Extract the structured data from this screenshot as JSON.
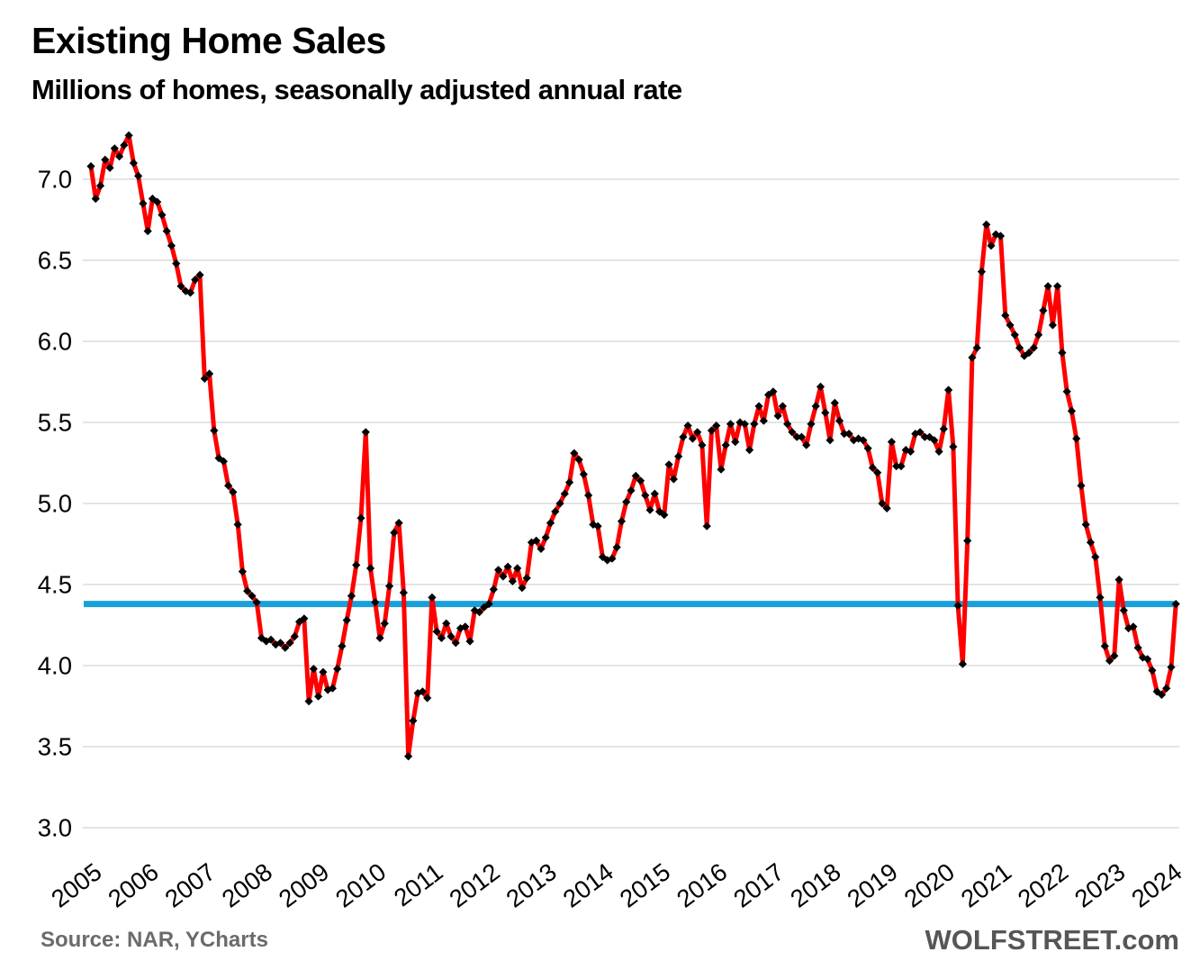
{
  "header": {
    "title": "Existing Home Sales",
    "subtitle": "Millions of homes, seasonally adjusted annual rate"
  },
  "footer": {
    "source": "Source: NAR, YCharts",
    "branding": "WOLFSTREET.com"
  },
  "colors": {
    "line": "#fe0000",
    "marker": "#000000",
    "baseline": "#1aa0d9",
    "gridline": "#d4d4d4",
    "text": "#000000"
  },
  "chart_data": {
    "type": "line",
    "title": "Existing Home Sales",
    "subtitle": "Millions of homes, seasonally adjusted annual rate",
    "frequency": "monthly",
    "x_start": "2005-01",
    "x_end": "2024-02",
    "xlabel": "",
    "ylabel": "Millions of homes (SAAR)",
    "ylim": [
      2.85,
      7.45
    ],
    "yticks": [
      3.0,
      3.5,
      4.0,
      4.5,
      5.0,
      5.5,
      6.0,
      6.5,
      7.0
    ],
    "xticks": [
      2005,
      2006,
      2007,
      2008,
      2009,
      2010,
      2011,
      2012,
      2013,
      2014,
      2015,
      2016,
      2017,
      2018,
      2019,
      2020,
      2021,
      2022,
      2023,
      2024
    ],
    "grid": "horizontal",
    "legend_position": "none",
    "baseline": {
      "value": 4.38,
      "color": "#1aa0d9"
    },
    "series": [
      {
        "name": "Existing home sales, millions SAAR",
        "color": "#fe0000",
        "marker": "diamond",
        "marker_color": "#000000",
        "values": [
          7.08,
          6.88,
          6.96,
          7.12,
          7.07,
          7.19,
          7.14,
          7.21,
          7.27,
          7.1,
          7.02,
          6.85,
          6.68,
          6.88,
          6.86,
          6.78,
          6.68,
          6.59,
          6.48,
          6.34,
          6.31,
          6.3,
          6.38,
          6.41,
          5.77,
          5.8,
          5.45,
          5.28,
          5.26,
          5.11,
          5.07,
          4.87,
          4.58,
          4.46,
          4.43,
          4.39,
          4.17,
          4.15,
          4.16,
          4.13,
          4.14,
          4.11,
          4.14,
          4.18,
          4.27,
          4.29,
          3.78,
          3.98,
          3.81,
          3.96,
          3.85,
          3.86,
          3.98,
          4.12,
          4.28,
          4.43,
          4.62,
          4.91,
          5.44,
          4.6,
          4.39,
          4.17,
          4.26,
          4.49,
          4.82,
          4.88,
          4.45,
          3.44,
          3.66,
          3.83,
          3.84,
          3.8,
          4.42,
          4.21,
          4.17,
          4.26,
          4.18,
          4.14,
          4.23,
          4.24,
          4.15,
          4.34,
          4.33,
          4.36,
          4.38,
          4.47,
          4.59,
          4.55,
          4.61,
          4.52,
          4.6,
          4.48,
          4.54,
          4.76,
          4.77,
          4.72,
          4.79,
          4.88,
          4.95,
          5.0,
          5.06,
          5.13,
          5.31,
          5.27,
          5.18,
          5.05,
          4.87,
          4.86,
          4.67,
          4.65,
          4.66,
          4.73,
          4.89,
          5.01,
          5.08,
          5.17,
          5.14,
          5.05,
          4.96,
          5.06,
          4.95,
          4.93,
          5.24,
          5.15,
          5.29,
          5.41,
          5.48,
          5.4,
          5.44,
          5.36,
          4.86,
          5.45,
          5.48,
          5.21,
          5.36,
          5.49,
          5.38,
          5.5,
          5.49,
          5.33,
          5.49,
          5.6,
          5.51,
          5.67,
          5.69,
          5.54,
          5.6,
          5.49,
          5.44,
          5.41,
          5.41,
          5.36,
          5.49,
          5.6,
          5.72,
          5.56,
          5.39,
          5.62,
          5.51,
          5.43,
          5.43,
          5.39,
          5.4,
          5.39,
          5.34,
          5.22,
          5.19,
          5.0,
          4.97,
          5.38,
          5.23,
          5.23,
          5.33,
          5.32,
          5.43,
          5.44,
          5.41,
          5.41,
          5.39,
          5.32,
          5.46,
          5.7,
          5.35,
          4.37,
          4.01,
          4.77,
          5.9,
          5.96,
          6.43,
          6.72,
          6.59,
          6.66,
          6.65,
          6.16,
          6.1,
          6.04,
          5.96,
          5.91,
          5.93,
          5.96,
          6.04,
          6.19,
          6.34,
          6.1,
          6.34,
          5.93,
          5.69,
          5.57,
          5.4,
          5.11,
          4.87,
          4.76,
          4.67,
          4.42,
          4.12,
          4.03,
          4.06,
          4.53,
          4.34,
          4.23,
          4.24,
          4.11,
          4.05,
          4.04,
          3.97,
          3.84,
          3.82,
          3.86,
          3.99,
          4.38
        ]
      }
    ]
  }
}
